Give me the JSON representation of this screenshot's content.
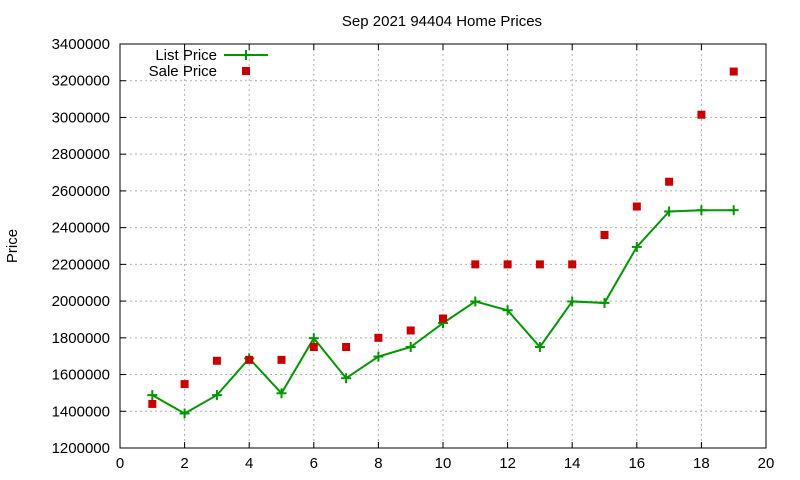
{
  "chart_data": {
    "type": "line",
    "title": "Sep 2021 94404 Home Prices",
    "xlabel": "",
    "ylabel": "Price",
    "xlim": [
      0,
      20
    ],
    "ylim": [
      1200000,
      3400000
    ],
    "x_ticks": [
      0,
      2,
      4,
      6,
      8,
      10,
      12,
      14,
      16,
      18,
      20
    ],
    "y_ticks": [
      1200000,
      1400000,
      1600000,
      1800000,
      2000000,
      2200000,
      2400000,
      2600000,
      2800000,
      3000000,
      3200000,
      3400000
    ],
    "grid": true,
    "legend_position": "top-left",
    "series": [
      {
        "name": "List Price",
        "style": "line+cross",
        "color": "#009900",
        "x": [
          1,
          2,
          3,
          4,
          5,
          6,
          7,
          8,
          9,
          10,
          11,
          12,
          13,
          14,
          15,
          16,
          17,
          18,
          19
        ],
        "values": [
          1488000,
          1388000,
          1488000,
          1688000,
          1498000,
          1798000,
          1580000,
          1698000,
          1750000,
          1880000,
          1998000,
          1950000,
          1750000,
          1998000,
          1990000,
          2295000,
          2488000,
          2495000,
          2495000
        ]
      },
      {
        "name": "Sale Price",
        "style": "square",
        "color": "#cc0000",
        "x": [
          1,
          2,
          3,
          4,
          5,
          6,
          7,
          8,
          9,
          10,
          11,
          12,
          13,
          14,
          15,
          16,
          17,
          18,
          19
        ],
        "values": [
          1440000,
          1548000,
          1675000,
          1680000,
          1680000,
          1750000,
          1750000,
          1800000,
          1840000,
          1905000,
          2200000,
          2200000,
          2200000,
          2200000,
          2360000,
          2515000,
          2650000,
          3015000,
          3250000
        ]
      }
    ]
  }
}
